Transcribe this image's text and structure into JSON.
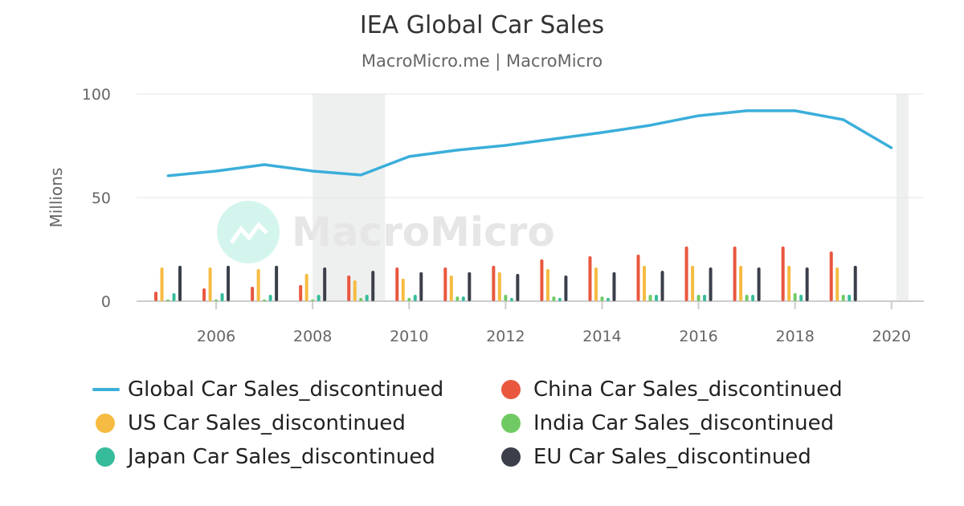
{
  "chart_data": {
    "type": "bar+line",
    "title": "IEA Global Car Sales",
    "subtitle": "MacroMicro.me | MacroMicro",
    "watermark": "MacroMicro",
    "ylabel": "Millions",
    "ylim": [
      0,
      100
    ],
    "yticks": [
      "0",
      "50",
      "100"
    ],
    "xticks": [
      "2006",
      "2008",
      "2010",
      "2012",
      "2014",
      "2016",
      "2018",
      "2020"
    ],
    "grid": true,
    "legend_position": "bottom",
    "shaded_periods": [
      [
        2008.0,
        2009.5
      ],
      [
        2020.1,
        2020.35
      ]
    ],
    "x": [
      2005,
      2006,
      2007,
      2008,
      2009,
      2010,
      2011,
      2012,
      2013,
      2014,
      2015,
      2016,
      2017,
      2018,
      2019,
      2020
    ],
    "series": [
      {
        "name": "Global Car Sales_discontinued",
        "kind": "line",
        "color": "#3BAEDA",
        "values": [
          60.5,
          62.8,
          65.9,
          62.8,
          60.9,
          69.8,
          72.9,
          75.2,
          78.3,
          81.4,
          84.9,
          89.5,
          91.9,
          91.9,
          87.6,
          74.0
        ]
      },
      {
        "name": "China Car Sales_discontinued",
        "kind": "bar",
        "color": "#E9573F",
        "values": [
          4.6,
          6.2,
          7.0,
          7.8,
          12.4,
          16.3,
          16.3,
          17.1,
          20.2,
          21.7,
          22.5,
          26.4,
          26.4,
          26.4,
          24.0,
          null
        ]
      },
      {
        "name": "US Car Sales_discontinued",
        "kind": "bar",
        "color": "#F6BB42",
        "values": [
          16.3,
          16.3,
          15.5,
          13.2,
          10.1,
          10.9,
          12.4,
          14.0,
          15.5,
          16.3,
          17.1,
          17.1,
          17.1,
          17.1,
          16.3,
          null
        ]
      },
      {
        "name": "India Car Sales_discontinued",
        "kind": "bar",
        "color": "#70CA63",
        "values": [
          0.8,
          0.8,
          0.8,
          0.8,
          1.6,
          1.6,
          2.3,
          3.1,
          2.3,
          2.3,
          3.1,
          3.1,
          3.1,
          3.9,
          3.1,
          null
        ]
      },
      {
        "name": "Japan Car Sales_discontinued",
        "kind": "bar",
        "color": "#37BC9B",
        "values": [
          3.9,
          3.9,
          3.1,
          3.1,
          3.1,
          3.1,
          2.3,
          1.6,
          1.6,
          1.6,
          3.1,
          3.1,
          3.1,
          3.1,
          3.1,
          null
        ]
      },
      {
        "name": "EU Car Sales_discontinued",
        "kind": "bar",
        "color": "#3B3F4A",
        "values": [
          17.1,
          17.1,
          17.1,
          16.3,
          14.7,
          14.0,
          14.0,
          13.2,
          12.4,
          14.0,
          14.7,
          16.3,
          16.3,
          16.3,
          17.1,
          null
        ]
      }
    ]
  }
}
